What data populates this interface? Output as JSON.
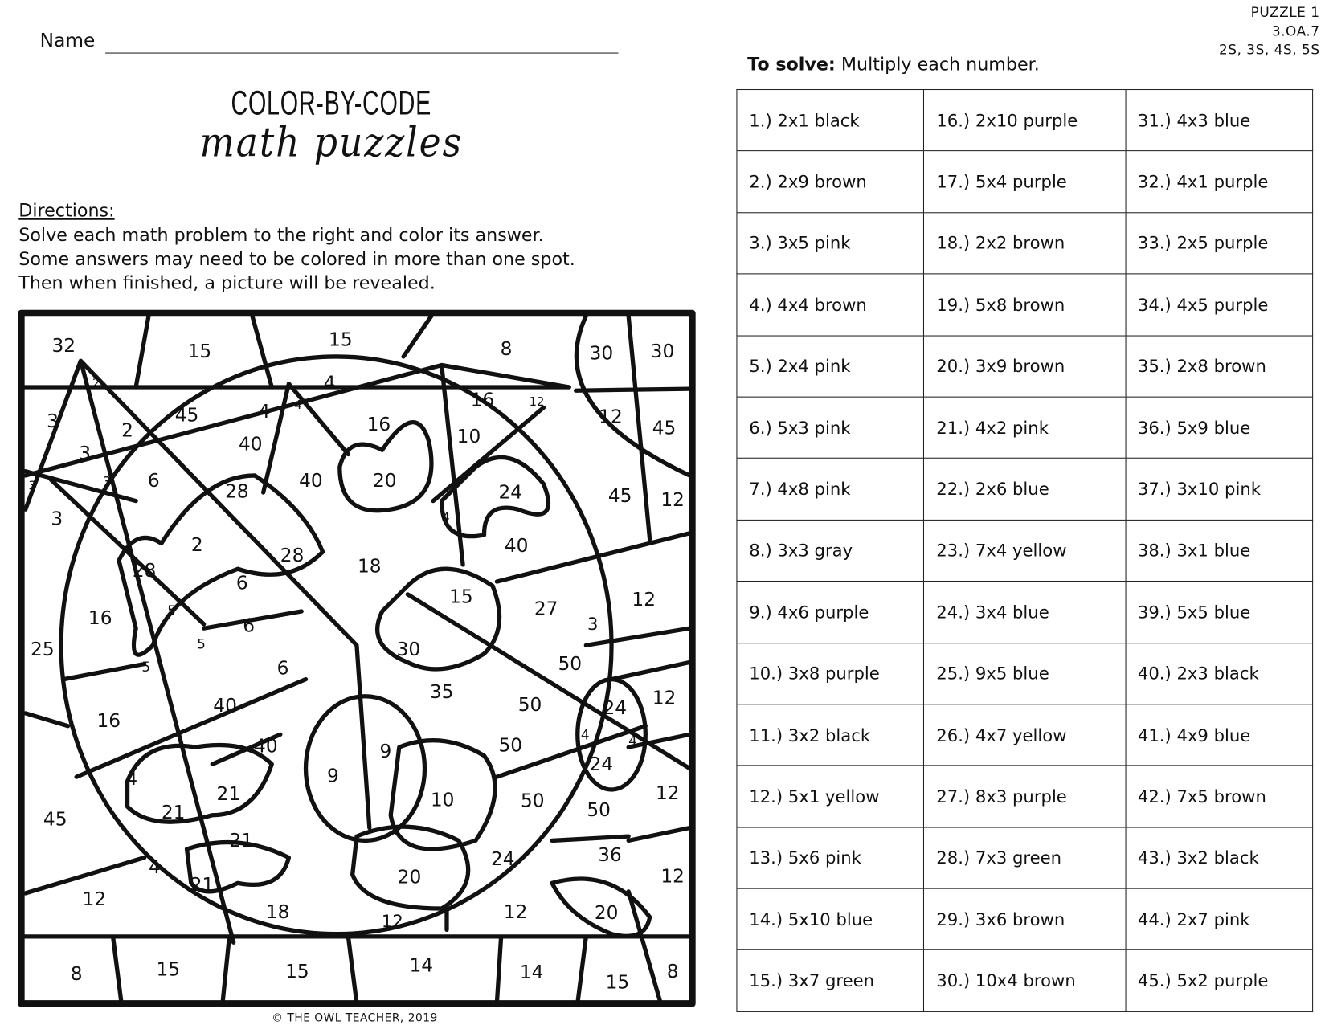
{
  "header": {
    "name_label": "Name",
    "puzzle_info": [
      "PUZZLE 1",
      "3.OA.7",
      "2S, 3S, 4S, 5S"
    ]
  },
  "title": {
    "line1": "COLOR-BY-CODE",
    "line2": "math puzzles"
  },
  "directions": {
    "heading": "Directions:",
    "lines": [
      "Solve each math problem to the right and color its answer.",
      "Some answers may need to be colored in more than one spot.",
      "Then when finished, a picture will be revealed."
    ]
  },
  "solve": {
    "label": "To solve:",
    "text": " Multiply each number."
  },
  "code_table": {
    "columns": [
      [
        "1.) 2x1  black",
        "2.) 2x9 brown",
        "3.) 3x5 pink",
        "4.) 4x4 brown",
        "5.) 2x4 pink",
        "6.) 5x3 pink",
        "7.) 4x8 pink",
        "8.) 3x3 gray",
        "9.) 4x6 purple",
        "10.) 3x8 purple",
        "11.) 3x2 black",
        "12.) 5x1 yellow",
        "13.) 5x6 pink",
        "14.) 5x10 blue",
        "15.) 3x7 green"
      ],
      [
        "16.) 2x10 purple",
        "17.) 5x4 purple",
        "18.) 2x2 brown",
        "19.) 5x8 brown",
        "20.) 3x9 brown",
        "21.) 4x2 pink",
        "22.) 2x6 blue",
        "23.) 7x4 yellow",
        "24.) 3x4 blue",
        "25.) 9x5 blue",
        "26.) 4x7 yellow",
        "27.) 8x3 purple",
        "28.) 7x3 green",
        "29.) 3x6 brown",
        "30.) 10x4 brown"
      ],
      [
        "31.) 4x3 blue",
        "32.) 4x1  purple",
        "33.) 2x5 purple",
        "34.) 4x5 purple",
        "35.) 2x8 brown",
        "36.) 5x9 blue",
        "37.) 3x10 pink",
        "38.) 3x1  blue",
        "39.) 5x5 blue",
        "40.) 2x3  black",
        "41.) 4x9  blue",
        "42.) 7x5 brown",
        "43.) 3x2 black",
        "44.) 2x7 pink",
        "45.) 5x2 purple"
      ]
    ]
  },
  "picture": {
    "numbers": [
      "32",
      "15",
      "15",
      "8",
      "30",
      "30",
      "2",
      "4",
      "4",
      "4",
      "16",
      "12",
      "3",
      "45",
      "2",
      "40",
      "16",
      "10",
      "12",
      "45",
      "3",
      "3",
      "3",
      "6",
      "28",
      "40",
      "20",
      "24",
      "45",
      "12",
      "3",
      "4",
      "2",
      "28",
      "18",
      "40",
      "28",
      "6",
      "15",
      "27",
      "12",
      "5",
      "16",
      "6",
      "3",
      "25",
      "5",
      "30",
      "5",
      "6",
      "50",
      "35",
      "40",
      "50",
      "24",
      "12",
      "16",
      "4",
      "4",
      "40",
      "50",
      "9",
      "9",
      "24",
      "4",
      "21",
      "21",
      "10",
      "50",
      "50",
      "12",
      "45",
      "21",
      "24",
      "36",
      "4",
      "21",
      "20",
      "12",
      "12",
      "18",
      "12",
      "12",
      "20",
      "8",
      "15",
      "15",
      "14",
      "14",
      "15",
      "8"
    ]
  },
  "footer": {
    "copyright": "© THE OWL TEACHER, 2019"
  }
}
